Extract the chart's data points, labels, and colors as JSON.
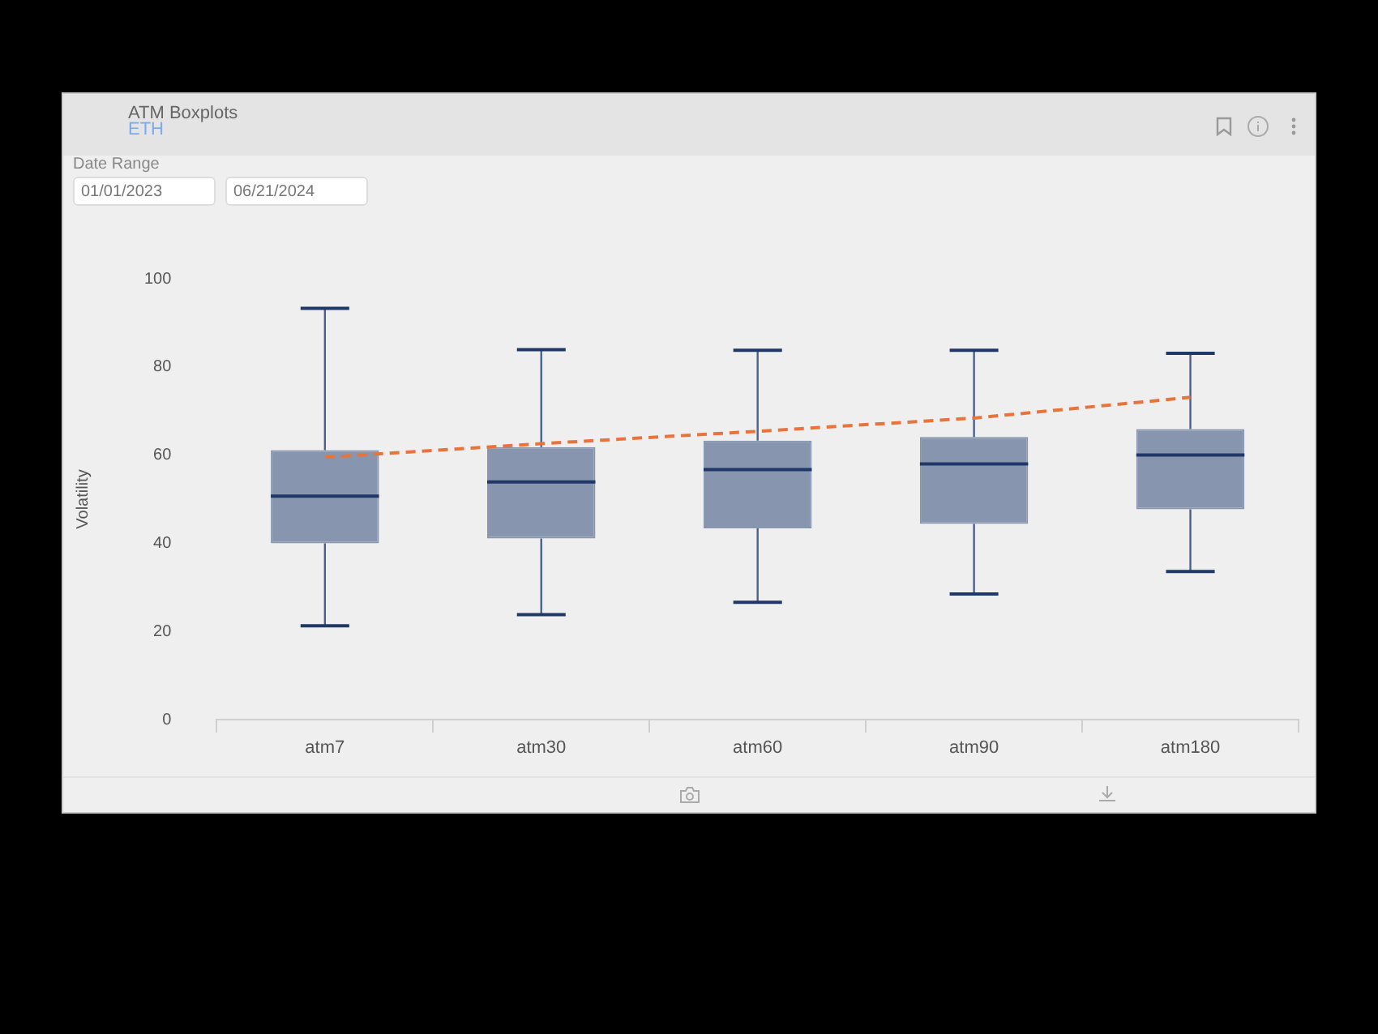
{
  "chart_data": {
    "type": "box",
    "title": "ATM Boxplots",
    "subtitle": "ETH",
    "ylabel": "Volatility",
    "annotations": [
      "Date Range",
      "01/01/2023",
      "06/21/2024"
    ],
    "categories": [
      "atm7",
      "atm30",
      "atm60",
      "atm90",
      "atm180"
    ],
    "color": "#8796ae",
    "boxes": [
      {
        "low": 21.3,
        "q1": 40,
        "median": 50.7,
        "q3": 61.1,
        "high": 93.3
      },
      {
        "low": 23.8,
        "q1": 41.1,
        "median": 53.9,
        "q3": 61.8,
        "high": 83.9
      },
      {
        "low": 26.6,
        "q1": 43.4,
        "median": 56.7,
        "q3": 63.3,
        "high": 83.8
      },
      {
        "low": 28.5,
        "q1": 44.4,
        "median": 58,
        "q3": 64.1,
        "high": 83.8
      },
      {
        "low": 33.6,
        "q1": 47.7,
        "median": 60,
        "q3": 65.9,
        "high": 83.1
      }
    ],
    "series": [
      {
        "type": "line",
        "color": "#e8743b",
        "line_style": "dashed",
        "marker": "none",
        "values": [
          59.5,
          62.6,
          65.4,
          68.4,
          73.1
        ]
      }
    ],
    "ylim": [
      0,
      100
    ],
    "yticks": [
      0,
      20,
      40,
      60,
      80,
      100
    ],
    "grid": false,
    "legend": false
  }
}
